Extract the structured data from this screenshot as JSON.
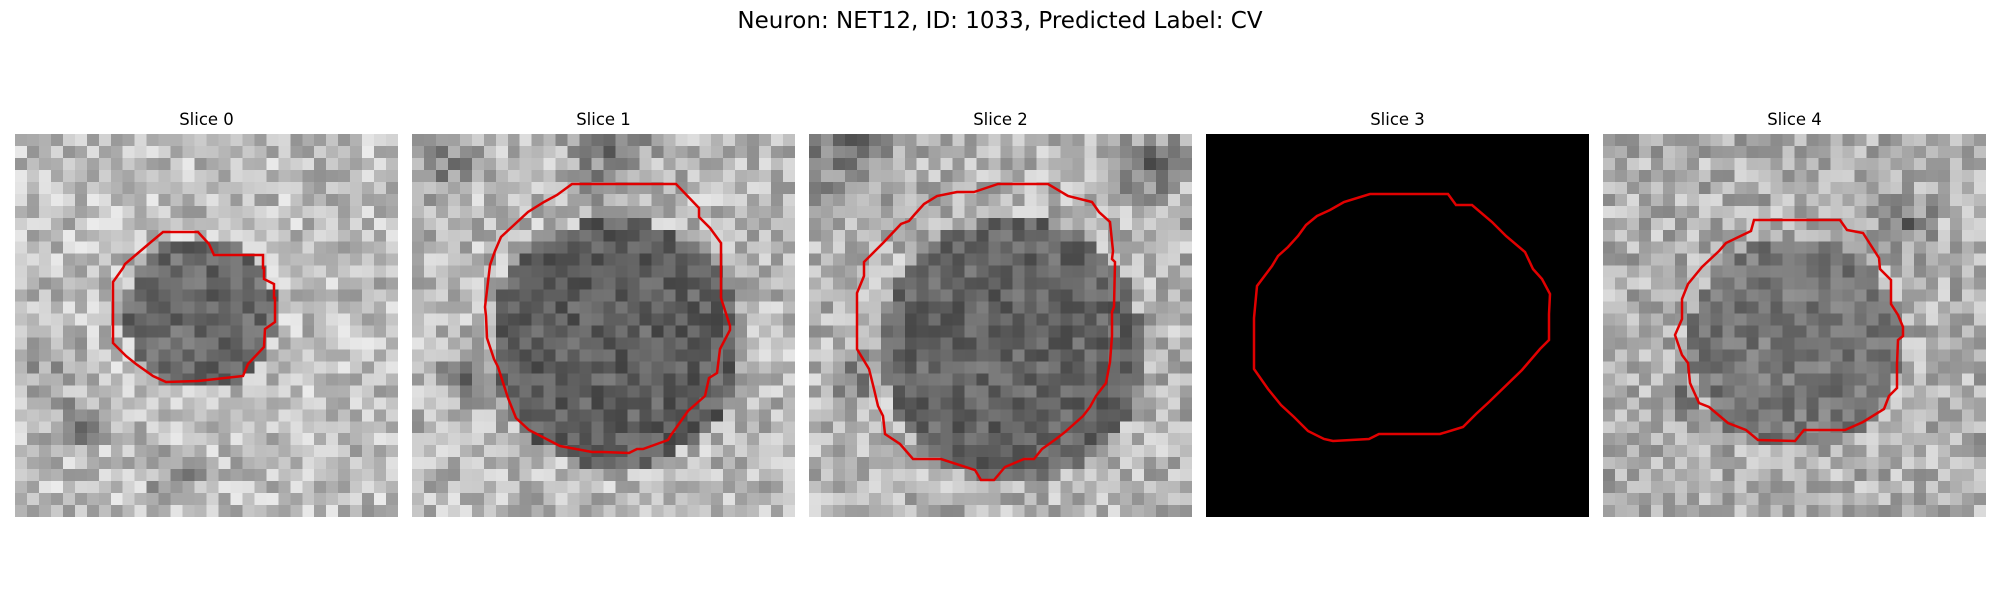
{
  "figure": {
    "title": "Neuron: NET12, ID: 1033, Predicted Label: CV"
  },
  "panels": [
    {
      "title": "Slice 0",
      "texture": "seed-a",
      "blank": false
    },
    {
      "title": "Slice 1",
      "texture": "seed-b",
      "blank": false
    },
    {
      "title": "Slice 2",
      "texture": "seed-c",
      "blank": false
    },
    {
      "title": "Slice 3",
      "texture": "black",
      "blank": true
    },
    {
      "title": "Slice 4",
      "texture": "seed-d",
      "blank": false
    }
  ],
  "style": {
    "contour_color": "#e00000",
    "blank_fill": "#000000",
    "colormap": "gray"
  }
}
